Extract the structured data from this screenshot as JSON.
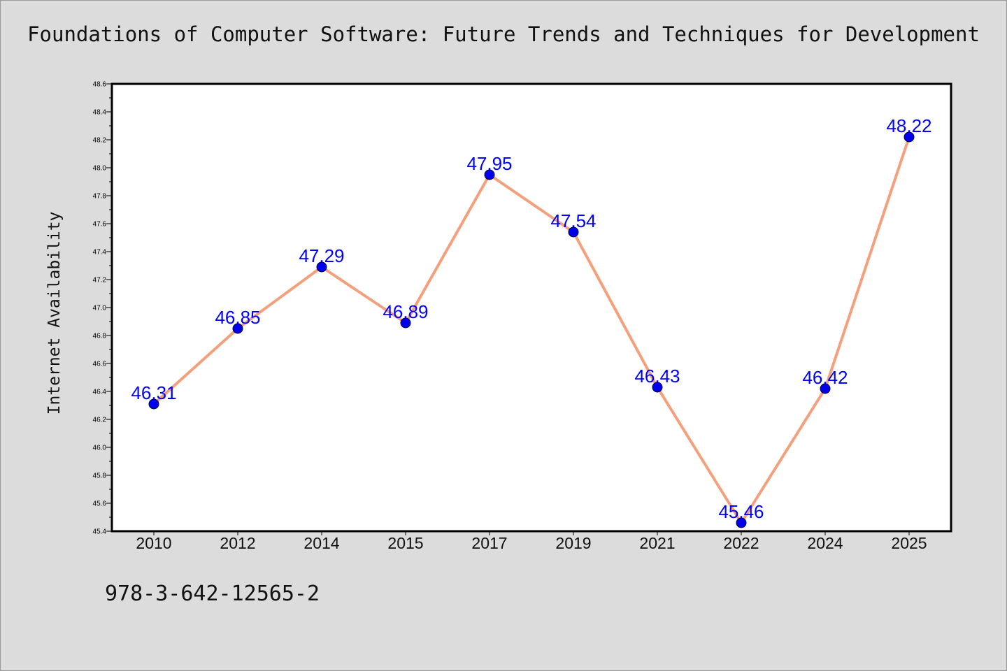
{
  "title": "Foundations of Computer Software: Future Trends and Techniques for Development",
  "footer": "978-3-642-12565-2",
  "colors": {
    "background": "#dcdcdc",
    "plot_background": "#ffffff",
    "line": "#f4a07c",
    "marker": "#0000ee",
    "data_label": "#0000ff"
  },
  "chart_data": {
    "type": "line",
    "title": "Foundations of Computer Software: Future Trends and Techniques for Development",
    "xlabel": "",
    "ylabel": "Internet Availability",
    "categories": [
      "2010",
      "2012",
      "2014",
      "2015",
      "2017",
      "2019",
      "2021",
      "2022",
      "2024",
      "2025"
    ],
    "values": [
      46.31,
      46.85,
      47.29,
      46.89,
      47.95,
      47.54,
      46.43,
      45.46,
      46.42,
      48.22
    ],
    "data_labels": [
      "46.31",
      "46.85",
      "47.29",
      "46.89",
      "47.95",
      "47.54",
      "46.43",
      "45.46",
      "46.42",
      "48.22"
    ],
    "ylim": [
      45.4,
      48.6
    ],
    "yticks": [
      "45.4",
      "45.6",
      "45.8",
      "46.0",
      "46.2",
      "46.4",
      "46.6",
      "46.8",
      "47.0",
      "47.2",
      "47.4",
      "47.6",
      "47.8",
      "48.0",
      "48.2",
      "48.4",
      "48.6"
    ],
    "grid": false,
    "legend": "none"
  }
}
